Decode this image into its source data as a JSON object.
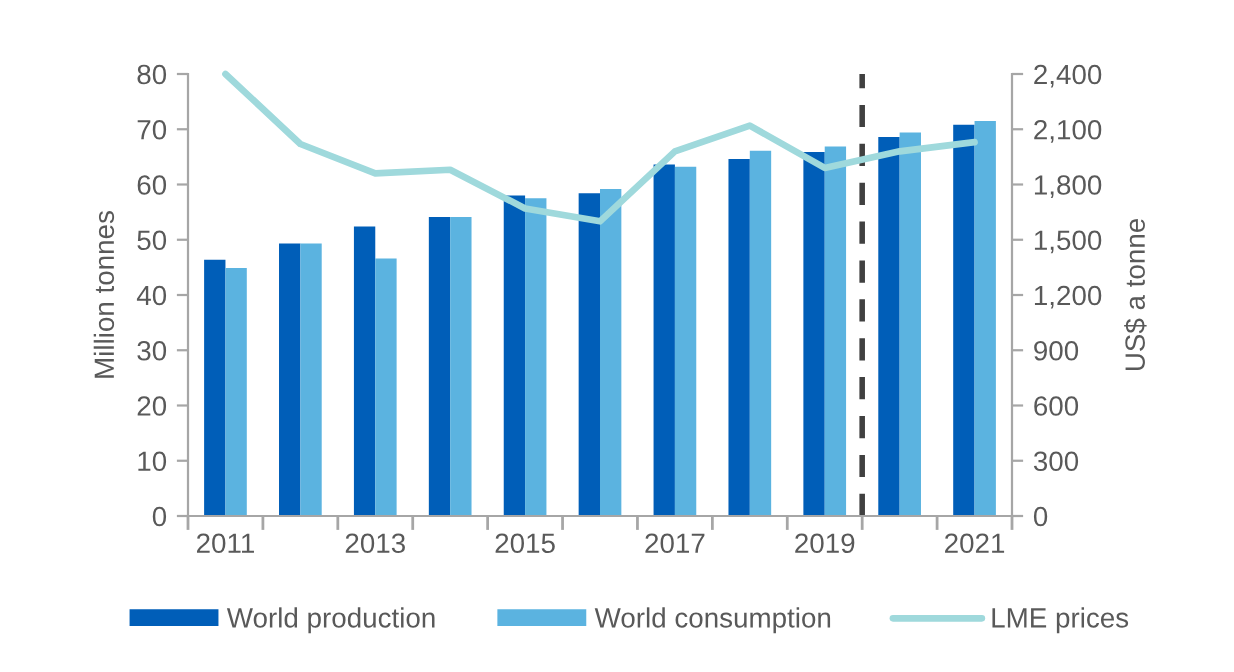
{
  "chart_data": {
    "type": "bar",
    "x": [
      2011,
      2012,
      2013,
      2014,
      2015,
      2016,
      2017,
      2018,
      2019,
      2020,
      2021
    ],
    "xlim": [
      2010.5,
      2021.5
    ],
    "xticks": [
      2011,
      2013,
      2015,
      2017,
      2019,
      2021,
      {
        "value": 2010.5,
        "label": null
      },
      {
        "value": 2011.5,
        "label": null
      },
      {
        "value": 2012.5,
        "label": null
      },
      {
        "value": 2013.5,
        "label": null
      },
      {
        "value": 2014.5,
        "label": null
      },
      {
        "value": 2015.5,
        "label": null
      },
      {
        "value": 2016.5,
        "label": null
      },
      {
        "value": 2017.5,
        "label": null
      },
      {
        "value": 2018.5,
        "label": null
      },
      {
        "value": 2019.5,
        "label": null
      },
      {
        "value": 2020.5,
        "label": null
      },
      {
        "value": 2021.5,
        "label": null
      }
    ],
    "ylabel": "Million tonnes",
    "y2label": "US$ a tonne",
    "ylim": [
      0,
      80
    ],
    "yticks": [
      0,
      10,
      20,
      30,
      40,
      50,
      60,
      70,
      80
    ],
    "y2lim": [
      0,
      2400
    ],
    "y2ticks": [
      0,
      300,
      600,
      900,
      {
        "value": 1200,
        "label": "1,200"
      },
      {
        "value": 1500,
        "label": "1,500"
      },
      {
        "value": 1800,
        "label": "1,800"
      },
      {
        "value": 2100,
        "label": "2,100"
      },
      {
        "value": 2400,
        "label": "2,400"
      }
    ],
    "series": [
      {
        "name": "World production",
        "color": "#005eb8",
        "values": [
          46.4,
          49.3,
          52.4,
          54.1,
          58.0,
          58.4,
          63.6,
          64.6,
          65.9,
          68.6,
          70.8
        ]
      },
      {
        "name": "World consumption",
        "color": "#5bb3e0",
        "values": [
          44.9,
          49.3,
          46.6,
          54.1,
          57.5,
          59.2,
          63.2,
          66.1,
          66.9,
          69.4,
          71.5
        ]
      },
      {
        "name": "LME prices",
        "type": "line",
        "axis": "y2",
        "color": "#9fd9dc",
        "values": [
          2400,
          2020,
          1860,
          1880,
          1670,
          1600,
          1980,
          2120,
          1890,
          1980,
          2030
        ]
      }
    ],
    "ref_lines": [
      {
        "axis": "x",
        "value": 2019.5,
        "color": "#404040",
        "line_style": "dashed"
      }
    ],
    "legend": "bottom"
  }
}
